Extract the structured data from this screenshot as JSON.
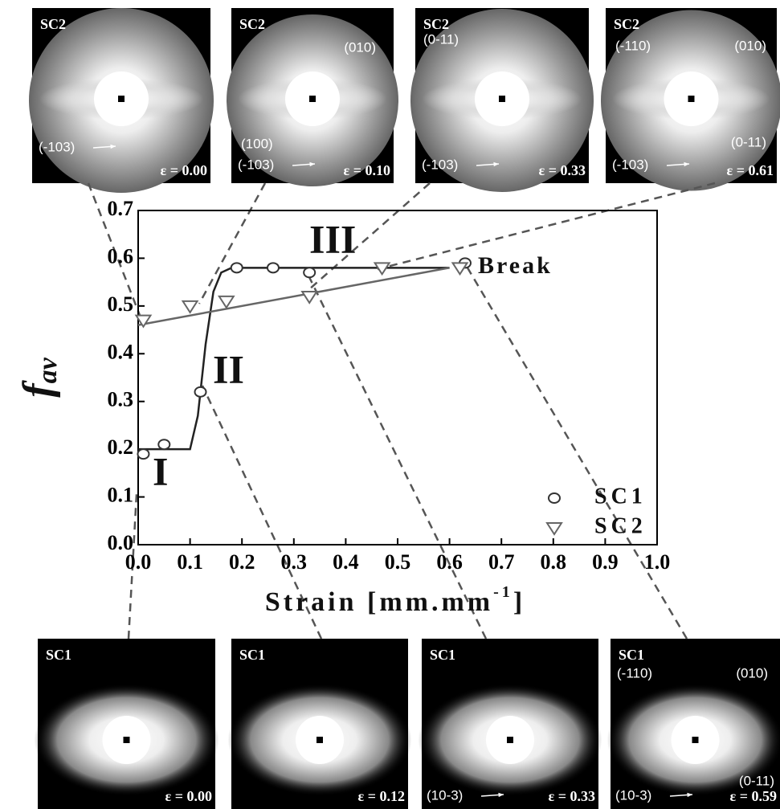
{
  "chart_data": {
    "type": "scatter",
    "xlabel": [
      "Strain [mm.mm",
      "-1",
      "]"
    ],
    "ylabel": [
      "f",
      "av"
    ],
    "xlim": [
      0,
      1
    ],
    "ylim": [
      0,
      0.7
    ],
    "xticks": [
      {
        "value": 0,
        "label": "0.0"
      },
      {
        "value": 0.1,
        "label": "0.1"
      },
      {
        "value": 0.2,
        "label": "0.2"
      },
      {
        "value": 0.3,
        "label": "0.3"
      },
      {
        "value": 0.4,
        "label": "0.4"
      },
      {
        "value": 0.5,
        "label": "0.5"
      },
      {
        "value": 0.6,
        "label": "0.6"
      },
      {
        "value": 0.7,
        "label": "0.7"
      },
      {
        "value": 0.8,
        "label": "0.8"
      },
      {
        "value": 0.9,
        "label": "0.9"
      },
      {
        "value": 1,
        "label": "1.0"
      }
    ],
    "yticks": [
      {
        "value": 0,
        "label": "0.0"
      },
      {
        "value": 0.1,
        "label": "0.1"
      },
      {
        "value": 0.2,
        "label": "0.2"
      },
      {
        "value": 0.3,
        "label": "0.3"
      },
      {
        "value": 0.4,
        "label": "0.4"
      },
      {
        "value": 0.5,
        "label": "0.5"
      },
      {
        "value": 0.6,
        "label": "0.6"
      },
      {
        "value": 0.7,
        "label": "0.7"
      }
    ],
    "series": [
      {
        "name": "SC1",
        "marker": "circle",
        "color": "#333333",
        "x": [
          0.01,
          0.05,
          0.12,
          0.19,
          0.26,
          0.33,
          0.63
        ],
        "values": [
          0.19,
          0.21,
          0.32,
          0.58,
          0.58,
          0.57,
          0.59
        ]
      },
      {
        "name": "SC2",
        "marker": "triangle",
        "color": "#666666",
        "x": [
          0.01,
          0.1,
          0.17,
          0.33,
          0.47,
          0.62
        ],
        "values": [
          0.47,
          0.5,
          0.51,
          0.52,
          0.58,
          0.58
        ]
      }
    ],
    "fits": [
      {
        "color": "#222222",
        "x": [
          0,
          0.1,
          0.115,
          0.13,
          0.145,
          0.16,
          0.18,
          0.6
        ],
        "values": [
          0.2,
          0.2,
          0.27,
          0.42,
          0.53,
          0.57,
          0.58,
          0.58
        ]
      },
      {
        "color": "#666666",
        "x": [
          0,
          0.6
        ],
        "values": [
          0.46,
          0.58
        ]
      }
    ],
    "annotations": [
      "I",
      "II",
      "III",
      "Break"
    ],
    "legend": "lower right"
  },
  "panels_top": [
    {
      "title": "SC2",
      "reflections": [
        "(-103)"
      ],
      "strain": "ε = 0.00"
    },
    {
      "title": "SC2",
      "reflections": [
        "(-103)",
        "(100)",
        "(010)"
      ],
      "strain": "ε = 0.10"
    },
    {
      "title": "SC2",
      "reflections": [
        "(-103)",
        "(0-11)"
      ],
      "strain": "ε = 0.33"
    },
    {
      "title": "SC2",
      "reflections": [
        "(-103)",
        "(-110)",
        "(010)",
        "(0-11)"
      ],
      "strain": "ε = 0.61"
    }
  ],
  "panels_bottom": [
    {
      "title": "SC1",
      "reflections": [],
      "strain": "ε = 0.00"
    },
    {
      "title": "SC1",
      "reflections": [],
      "strain": "ε = 0.12"
    },
    {
      "title": "SC1",
      "reflections": [
        "(10-3)"
      ],
      "strain": "ε = 0.33"
    },
    {
      "title": "SC1",
      "reflections": [
        "(10-3)",
        "(-110)",
        "(010)",
        "(0-11)"
      ],
      "strain": "ε = 0.59"
    }
  ]
}
